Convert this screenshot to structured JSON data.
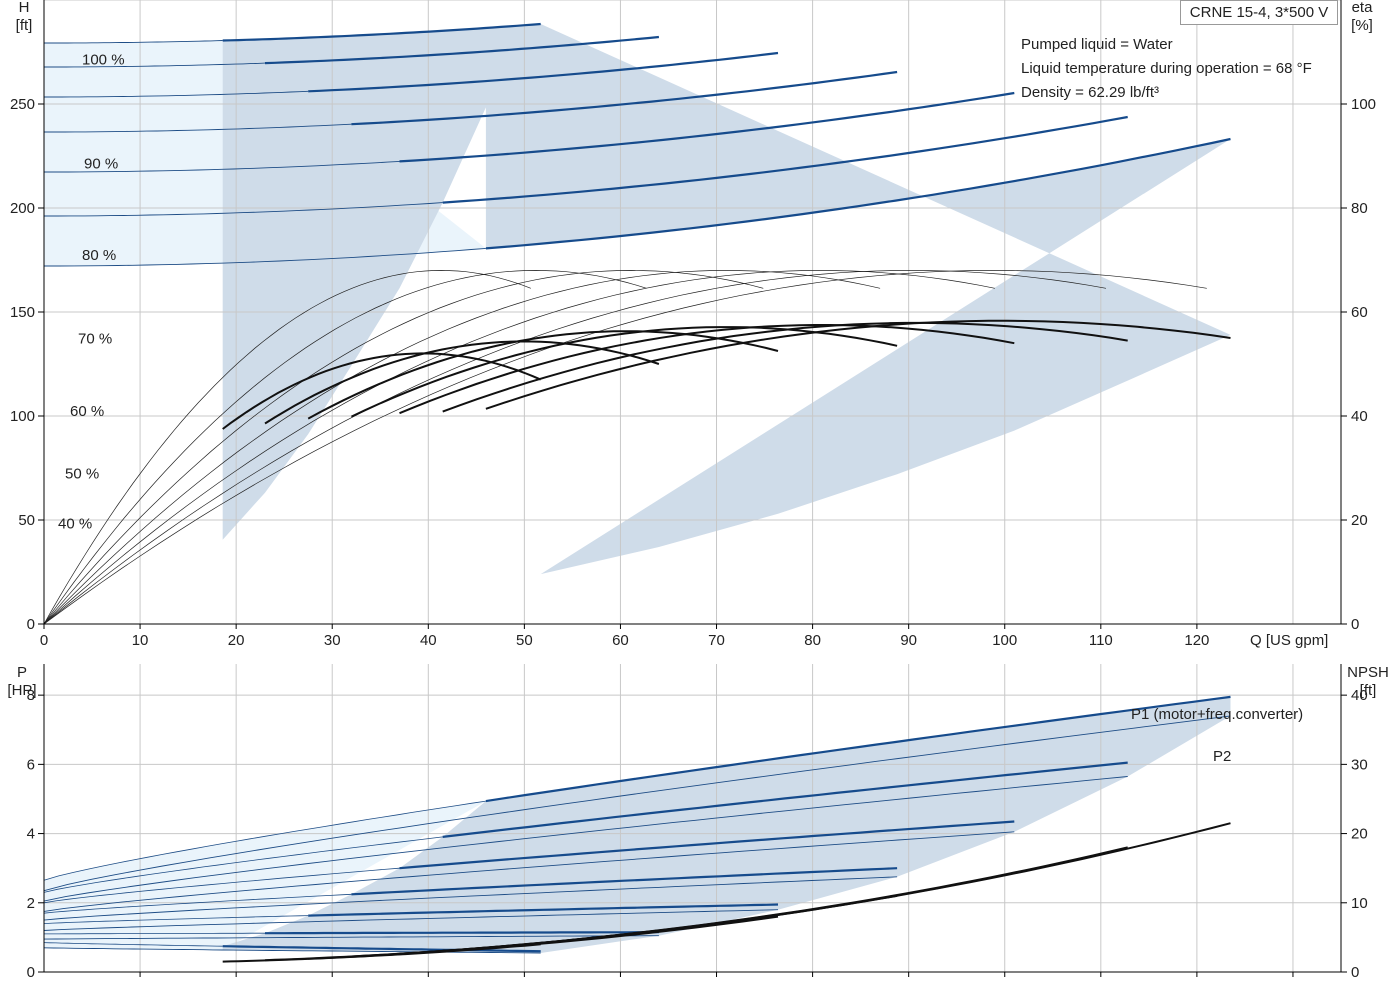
{
  "header": {
    "model": "CRNE 15-4, 3*500 V",
    "info": [
      "Pumped liquid = Water",
      "Liquid temperature during operation = 68 °F",
      "Density = 62.29 lb/ft³"
    ]
  },
  "chart_data": [
    {
      "type": "line",
      "xlabel": "Q [US gpm]",
      "ylabel": "H\n[ft]",
      "y2label": "eta\n[%]",
      "xlim": [
        0,
        135
      ],
      "ylim": [
        0,
        300
      ],
      "y2lim": [
        0,
        120
      ],
      "xticks": [
        "0",
        "10",
        "20",
        "30",
        "40",
        "50",
        "60",
        "70",
        "80",
        "90",
        "100",
        "110",
        "120"
      ],
      "yticks": [
        "0",
        "50",
        "100",
        "150",
        "200",
        "250"
      ],
      "y2ticks": [
        "0",
        "20",
        "40",
        "60",
        "80",
        "100"
      ],
      "grid": true,
      "speed_labels": [
        "100 %",
        "90 %",
        "80 %",
        "70 %",
        "60 %",
        "50 %",
        "40 %"
      ],
      "head_curves": [
        {
          "name": "100 %",
          "h0": 266,
          "qmax": 123.5,
          "hmax": 139,
          "qa": 46
        },
        {
          "name": "90 %",
          "h0": 216,
          "qmax": 112.8,
          "hmax": 117,
          "qa": 41.5
        },
        {
          "name": "80 %",
          "h0": 172,
          "qmax": 101,
          "hmax": 93,
          "qa": 37
        },
        {
          "name": "70 %",
          "h0": 132,
          "qmax": 88.8,
          "hmax": 72,
          "qa": 32
        },
        {
          "name": "60 %",
          "h0": 97,
          "qmax": 76.4,
          "hmax": 53,
          "qa": 27.5
        },
        {
          "name": "50 %",
          "h0": 67,
          "qmax": 64,
          "hmax": 37,
          "qa": 23
        },
        {
          "name": "40 %",
          "h0": 43,
          "qmax": 51.7,
          "hmax": 24,
          "qa": 18.6
        }
      ],
      "efficiency_curves": [
        {
          "speed": "100 %",
          "qmax": 123.5,
          "etamax": 55
        },
        {
          "speed": "90 %",
          "qmax": 112.8,
          "etamax": 54.5
        },
        {
          "speed": "80 %",
          "qmax": 101,
          "etamax": 54
        },
        {
          "speed": "70 %",
          "qmax": 88.8,
          "etamax": 53.5
        },
        {
          "speed": "60 %",
          "qmax": 76.4,
          "etamax": 52.5
        },
        {
          "speed": "50 %",
          "qmax": 64,
          "etamax": 50
        },
        {
          "speed": "40 %",
          "qmax": 51.7,
          "etamax": 47
        }
      ],
      "eta_peak": 68
    },
    {
      "type": "line",
      "xlabel": "",
      "ylabel": "P\n[HP]",
      "y2label": "NPSH\n[ft]",
      "xlim": [
        0,
        135
      ],
      "ylim": [
        0,
        8.9
      ],
      "y2lim": [
        0,
        44.5
      ],
      "yticks": [
        "0",
        "2",
        "4",
        "6",
        "8"
      ],
      "y2ticks": [
        "0",
        "10",
        "20",
        "30",
        "40"
      ],
      "grid": true,
      "series_labels": [
        "P1 (motor+freq.converter)",
        "P2"
      ],
      "p1_curves": [
        {
          "qmax": 123.5,
          "p0": 2.65,
          "pmax": 7.95
        },
        {
          "qmax": 112.8,
          "p0": 2.3,
          "pmax": 6.05
        },
        {
          "qmax": 101,
          "p0": 2.0,
          "pmax": 4.35
        },
        {
          "qmax": 88.8,
          "p0": 1.7,
          "pmax": 3.0
        },
        {
          "qmax": 76.4,
          "p0": 1.4,
          "pmax": 1.95
        },
        {
          "qmax": 64,
          "p0": 1.1,
          "pmax": 1.15
        },
        {
          "qmax": 51.7,
          "p0": 0.85,
          "pmax": 0.6
        }
      ],
      "p2_curves": [
        {
          "qmax": 123.5,
          "p0": 2.35,
          "pmax": 7.4
        },
        {
          "qmax": 112.8,
          "p0": 2.05,
          "pmax": 5.65
        },
        {
          "qmax": 101,
          "p0": 1.75,
          "pmax": 4.05
        },
        {
          "qmax": 88.8,
          "p0": 1.5,
          "pmax": 2.75
        },
        {
          "qmax": 76.4,
          "p0": 1.2,
          "pmax": 1.8
        },
        {
          "qmax": 64,
          "p0": 0.95,
          "pmax": 1.05
        },
        {
          "qmax": 51.7,
          "p0": 0.7,
          "pmax": 0.55
        }
      ],
      "npsh_curves": [
        {
          "qmax": 123.5,
          "nmax": 21.5
        },
        {
          "qmax": 112.8,
          "nmax": 18
        },
        {
          "qmax": 101,
          "nmax": 14.3
        },
        {
          "qmax": 88.8,
          "nmax": 11
        },
        {
          "qmax": 76.4,
          "nmax": 8
        },
        {
          "qmax": 64,
          "nmax": 6
        },
        {
          "qmax": 51.7,
          "nmax": 4
        }
      ]
    }
  ]
}
